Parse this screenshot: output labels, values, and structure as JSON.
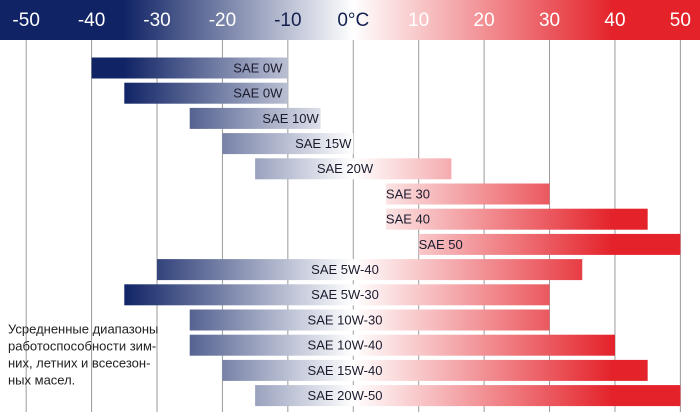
{
  "chart_data": {
    "type": "range-bar",
    "categories": [
      "SAE 0W",
      "SAE 0W",
      "SAE 10W",
      "SAE 15W",
      "SAE 20W",
      "SAE 30",
      "SAE 40",
      "SAE 50",
      "SAE 5W-40",
      "SAE 5W-30",
      "SAE 10W-30",
      "SAE 10W-40",
      "SAE 15W-40",
      "SAE 20W-50"
    ],
    "start": [
      -40,
      -35,
      -25,
      -20,
      -15,
      5,
      5,
      10,
      -30,
      -35,
      -25,
      -25,
      -20,
      -15
    ],
    "end": [
      -10,
      -10,
      -5,
      0,
      15,
      30,
      45,
      50,
      35,
      30,
      30,
      40,
      45,
      50
    ],
    "xlim": [
      -54,
      53
    ],
    "xticks": [
      -50,
      -40,
      -30,
      -20,
      -10,
      {
        "value": 0,
        "label": "0°C"
      },
      10,
      20,
      30,
      40,
      50
    ],
    "grid": true,
    "colors": {
      "cold": "#102365",
      "neutral": "#ffffff",
      "hot": "#e4222a"
    },
    "annotation": [
      "Усредненные диапазоны",
      "работоспособности зим-",
      "них, летних и всесезон-",
      "ных масел."
    ]
  }
}
